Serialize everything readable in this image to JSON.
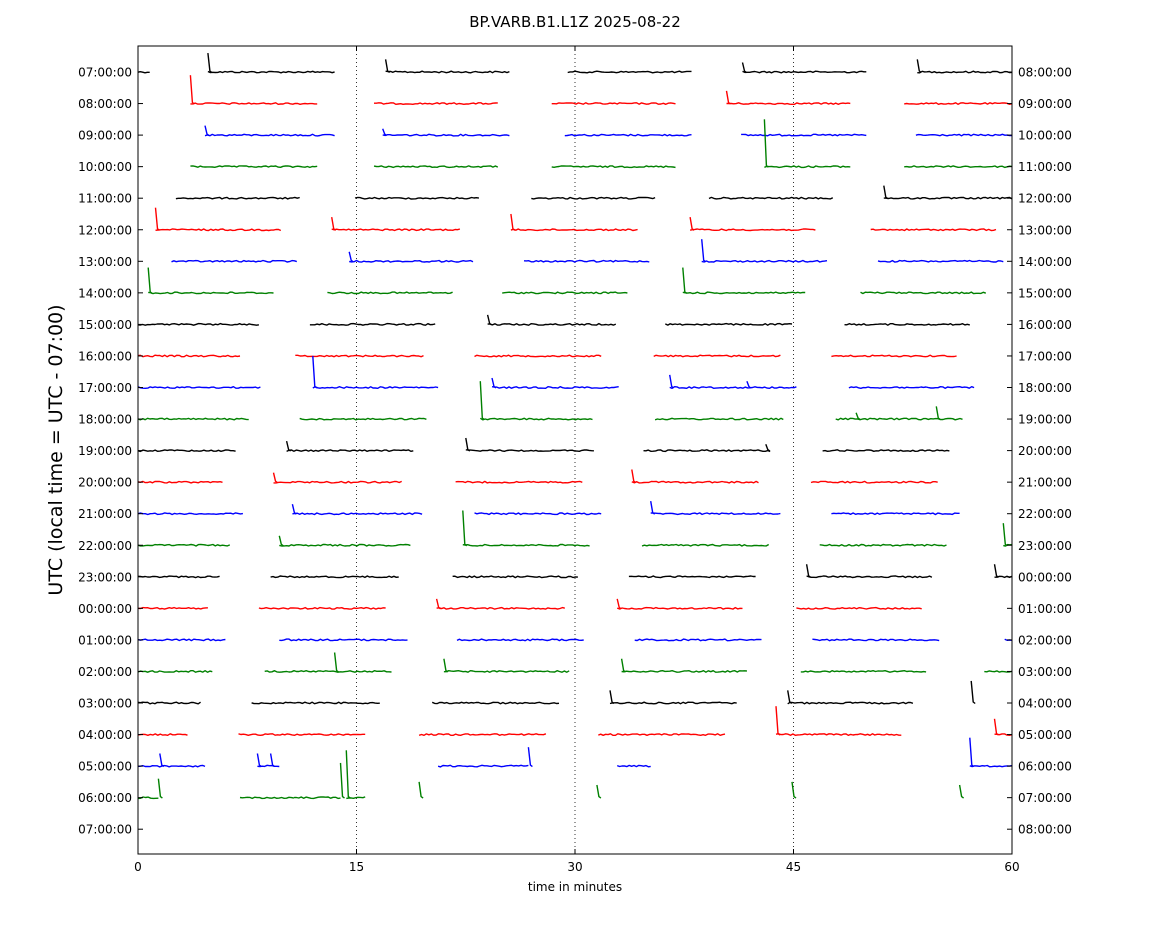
{
  "chart_data": {
    "type": "line",
    "title": "BP.VARB.B1.L1Z 2025-08-22",
    "xlabel": "time in minutes",
    "ylabel": "UTC (local time = UTC - 07:00)",
    "xlim": [
      0,
      60
    ],
    "x_ticks": [
      "0",
      "15",
      "30",
      "45",
      "60"
    ],
    "x_tick_values": [
      0,
      15,
      30,
      45,
      60
    ],
    "vertical_gridlines_at": [
      15,
      30,
      45
    ],
    "grid": "vertical dotted",
    "series_colors": [
      "#000000",
      "#ff0000",
      "#0000ff",
      "#008000"
    ],
    "left_tick_labels": [
      "07:00:00",
      "08:00:00",
      "09:00:00",
      "10:00:00",
      "11:00:00",
      "12:00:00",
      "13:00:00",
      "14:00:00",
      "15:00:00",
      "16:00:00",
      "17:00:00",
      "18:00:00",
      "19:00:00",
      "20:00:00",
      "21:00:00",
      "22:00:00",
      "23:00:00",
      "00:00:00",
      "01:00:00",
      "02:00:00",
      "03:00:00",
      "04:00:00",
      "05:00:00",
      "06:00:00",
      "07:00:00"
    ],
    "right_tick_labels": [
      "08:00:00",
      "09:00:00",
      "10:00:00",
      "11:00:00",
      "12:00:00",
      "13:00:00",
      "14:00:00",
      "15:00:00",
      "16:00:00",
      "17:00:00",
      "18:00:00",
      "19:00:00",
      "20:00:00",
      "21:00:00",
      "22:00:00",
      "23:00:00",
      "00:00:00",
      "01:00:00",
      "02:00:00",
      "03:00:00",
      "04:00:00",
      "05:00:00",
      "06:00:00",
      "07:00:00",
      "08:00:00"
    ],
    "rows": [
      {
        "segments": [
          [
            0,
            0.8
          ],
          [
            4.8,
            13.5
          ],
          [
            17,
            25.5
          ],
          [
            29.5,
            38
          ],
          [
            41.5,
            50
          ],
          [
            53.5,
            60
          ]
        ],
        "events": [
          [
            4.8,
            0.6
          ],
          [
            17,
            0.4
          ],
          [
            41.5,
            0.3
          ],
          [
            53.5,
            0.4
          ]
        ]
      },
      {
        "segments": [
          [
            3.6,
            12.3
          ],
          [
            16.2,
            24.7
          ],
          [
            28.4,
            36.9
          ],
          [
            40.4,
            48.9
          ],
          [
            52.6,
            60
          ]
        ],
        "events": [
          [
            3.6,
            0.9
          ],
          [
            40.4,
            0.4
          ]
        ]
      },
      {
        "segments": [
          [
            4.6,
            13.5
          ],
          [
            16.8,
            25.5
          ],
          [
            29.3,
            38
          ],
          [
            41.4,
            50
          ],
          [
            53.4,
            60
          ]
        ],
        "events": [
          [
            4.6,
            0.3
          ],
          [
            16.8,
            0.2
          ]
        ]
      },
      {
        "segments": [
          [
            3.6,
            12.3
          ],
          [
            16.2,
            24.7
          ],
          [
            28.4,
            36.9
          ],
          [
            43,
            48.9
          ],
          [
            52.6,
            60
          ]
        ],
        "events": [
          [
            43,
            1.5
          ]
        ]
      },
      {
        "segments": [
          [
            2.6,
            11.1
          ],
          [
            14.9,
            23.4
          ],
          [
            27,
            35.5
          ],
          [
            39.2,
            47.7
          ],
          [
            51.2,
            60
          ]
        ],
        "events": [
          [
            51.2,
            0.4
          ]
        ]
      },
      {
        "segments": [
          [
            1.2,
            9.8
          ],
          [
            13.3,
            22.1
          ],
          [
            25.6,
            34.3
          ],
          [
            37.9,
            46.5
          ],
          [
            50.3,
            58.9
          ]
        ],
        "events": [
          [
            1.2,
            0.7
          ],
          [
            13.3,
            0.4
          ],
          [
            25.6,
            0.5
          ],
          [
            37.9,
            0.4
          ]
        ]
      },
      {
        "segments": [
          [
            2.3,
            10.9
          ],
          [
            14.5,
            23
          ],
          [
            26.5,
            35.1
          ],
          [
            38.7,
            47.3
          ],
          [
            50.8,
            59.4
          ]
        ],
        "events": [
          [
            14.5,
            0.3
          ],
          [
            38.7,
            0.7
          ]
        ]
      },
      {
        "segments": [
          [
            0.7,
            9.3
          ],
          [
            13,
            21.6
          ],
          [
            25,
            33.6
          ],
          [
            37.4,
            45.8
          ],
          [
            49.6,
            58.2
          ]
        ],
        "events": [
          [
            0.7,
            0.8
          ],
          [
            37.4,
            0.8
          ]
        ]
      },
      {
        "segments": [
          [
            0,
            8.3
          ],
          [
            11.8,
            20.4
          ],
          [
            24,
            32.8
          ],
          [
            36.2,
            44.9
          ],
          [
            48.5,
            57.1
          ]
        ],
        "events": [
          [
            24,
            0.3
          ]
        ]
      },
      {
        "segments": [
          [
            0,
            7
          ],
          [
            10.8,
            19.6
          ],
          [
            23.1,
            31.8
          ],
          [
            35.4,
            44.1
          ],
          [
            47.6,
            56.2
          ]
        ],
        "events": []
      },
      {
        "segments": [
          [
            0,
            8.4
          ],
          [
            12,
            20.6
          ],
          [
            24.3,
            33
          ],
          [
            36.5,
            45.2
          ],
          [
            48.8,
            57.4
          ]
        ],
        "events": [
          [
            12,
            1
          ],
          [
            24.3,
            0.3
          ],
          [
            36.5,
            0.4
          ],
          [
            41.8,
            0.2
          ]
        ]
      },
      {
        "segments": [
          [
            0,
            7.6
          ],
          [
            11.1,
            19.8
          ],
          [
            23.5,
            31.2
          ],
          [
            35.5,
            44.3
          ],
          [
            47.9,
            56.6
          ]
        ],
        "events": [
          [
            23.5,
            1.2
          ],
          [
            49.3,
            0.2
          ],
          [
            54.8,
            0.4
          ]
        ]
      },
      {
        "segments": [
          [
            0,
            6.7
          ],
          [
            10.2,
            18.9
          ],
          [
            22.5,
            31.3
          ],
          [
            34.7,
            43.4
          ],
          [
            47,
            55.7
          ]
        ],
        "events": [
          [
            10.2,
            0.3
          ],
          [
            22.5,
            0.4
          ],
          [
            43.1,
            0.2
          ]
        ]
      },
      {
        "segments": [
          [
            0,
            5.8
          ],
          [
            9.3,
            18.1
          ],
          [
            21.8,
            30.5
          ],
          [
            33.9,
            42.6
          ],
          [
            46.2,
            54.9
          ]
        ],
        "events": [
          [
            9.3,
            0.3
          ],
          [
            33.9,
            0.4
          ]
        ]
      },
      {
        "segments": [
          [
            0,
            7.2
          ],
          [
            10.6,
            19.5
          ],
          [
            23.1,
            31.8
          ],
          [
            35.2,
            44.1
          ],
          [
            47.6,
            56.4
          ]
        ],
        "events": [
          [
            10.6,
            0.3
          ],
          [
            35.2,
            0.4
          ]
        ]
      },
      {
        "segments": [
          [
            0,
            6.3
          ],
          [
            9.7,
            18.7
          ],
          [
            22.3,
            31
          ],
          [
            34.6,
            43.3
          ],
          [
            46.8,
            55.5
          ],
          [
            59.4,
            60
          ]
        ],
        "events": [
          [
            9.7,
            0.3
          ],
          [
            22.3,
            1.1
          ],
          [
            59.4,
            0.7
          ]
        ]
      },
      {
        "segments": [
          [
            0,
            5.6
          ],
          [
            9.1,
            17.9
          ],
          [
            21.6,
            30.2
          ],
          [
            33.7,
            42.4
          ],
          [
            45.9,
            54.5
          ],
          [
            58.8,
            60
          ]
        ],
        "events": [
          [
            45.9,
            0.4
          ],
          [
            58.8,
            0.4
          ]
        ]
      },
      {
        "segments": [
          [
            0,
            4.8
          ],
          [
            8.3,
            17
          ],
          [
            20.5,
            29.3
          ],
          [
            32.9,
            41.5
          ],
          [
            45.2,
            53.8
          ]
        ],
        "events": [
          [
            20.5,
            0.3
          ],
          [
            32.9,
            0.3
          ]
        ]
      },
      {
        "segments": [
          [
            0,
            6
          ],
          [
            9.7,
            18.5
          ],
          [
            21.9,
            30.6
          ],
          [
            34.1,
            42.8
          ],
          [
            46.3,
            55
          ],
          [
            59.5,
            60
          ]
        ],
        "events": []
      },
      {
        "segments": [
          [
            0,
            5.1
          ],
          [
            8.7,
            17.4
          ],
          [
            21,
            29.6
          ],
          [
            33.2,
            41.8
          ],
          [
            45.5,
            54.1
          ],
          [
            58.1,
            60
          ]
        ],
        "events": [
          [
            13.5,
            0.6
          ],
          [
            21,
            0.4
          ],
          [
            33.2,
            0.4
          ]
        ]
      },
      {
        "segments": [
          [
            0,
            4.3
          ],
          [
            7.8,
            16.6
          ],
          [
            20.2,
            28.9
          ],
          [
            32.4,
            41.1
          ],
          [
            44.6,
            53.2
          ]
        ],
        "events": [
          [
            32.4,
            0.4
          ],
          [
            44.6,
            0.4
          ],
          [
            57.2,
            0.7
          ]
        ]
      },
      {
        "segments": [
          [
            0,
            3.4
          ],
          [
            6.9,
            15.6
          ],
          [
            19.3,
            28
          ],
          [
            31.6,
            40.3
          ],
          [
            43.8,
            52.4
          ],
          [
            58.8,
            60
          ]
        ],
        "events": [
          [
            43.8,
            0.9
          ],
          [
            58.8,
            0.5
          ]
        ]
      },
      {
        "segments": [
          [
            0,
            4.6
          ],
          [
            8.2,
            9.7
          ],
          [
            20.6,
            26.8
          ],
          [
            32.9,
            35.2
          ],
          [
            57.1,
            60
          ]
        ],
        "events": [
          [
            1.5,
            0.4
          ],
          [
            8.2,
            0.4
          ],
          [
            9.1,
            0.4
          ],
          [
            26.8,
            0.6
          ],
          [
            57.1,
            0.9
          ]
        ]
      },
      {
        "segments": [
          [
            0,
            1.4
          ],
          [
            7,
            10.7
          ],
          [
            10.7,
            13.9
          ],
          [
            14.3,
            15.6
          ]
        ],
        "events": [
          [
            1.4,
            0.6
          ],
          [
            13.9,
            1.1
          ],
          [
            14.3,
            1.5
          ],
          [
            31.5,
            0.4
          ],
          [
            44.9,
            0.5
          ],
          [
            56.4,
            0.4
          ],
          [
            19.3,
            0.5
          ]
        ]
      },
      {
        "segments": [],
        "events": []
      }
    ]
  }
}
